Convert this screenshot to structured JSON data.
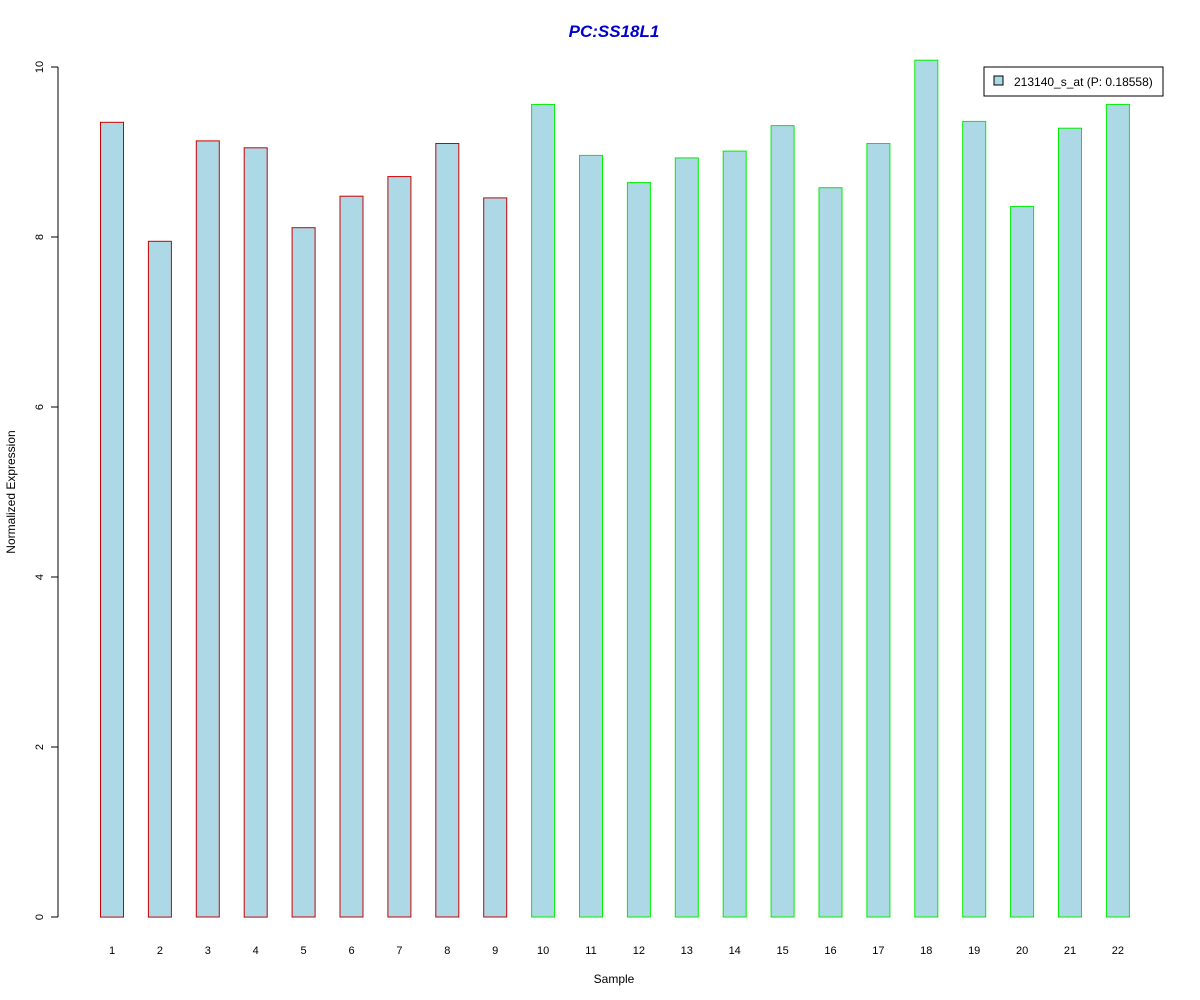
{
  "chart_data": {
    "type": "bar",
    "title": "PC:SS18L1",
    "xlabel": "Sample",
    "ylabel": "Normalized Expression",
    "ylim": [
      0,
      10
    ],
    "yticks": [
      0,
      2,
      4,
      6,
      8,
      10
    ],
    "categories": [
      "1",
      "2",
      "3",
      "4",
      "5",
      "6",
      "7",
      "8",
      "9",
      "10",
      "11",
      "12",
      "13",
      "14",
      "15",
      "16",
      "17",
      "18",
      "19",
      "20",
      "21",
      "22"
    ],
    "series": [
      {
        "name": "213140_s_at (P: 0.18558)",
        "values": [
          9.35,
          7.95,
          9.13,
          9.05,
          8.11,
          8.48,
          8.71,
          9.1,
          8.46,
          9.56,
          8.96,
          8.64,
          8.93,
          9.01,
          9.31,
          8.58,
          9.1,
          10.08,
          9.36,
          8.36,
          9.28,
          9.56
        ]
      }
    ],
    "groups": [
      1,
      1,
      1,
      1,
      1,
      1,
      1,
      1,
      1,
      2,
      2,
      2,
      2,
      2,
      2,
      2,
      2,
      2,
      2,
      2,
      2,
      2
    ],
    "colors": {
      "fill": "#add8e6",
      "group1_border": "#cc0000",
      "group2_border": "#00ee00",
      "title": "#0000cc",
      "axis": "#000000"
    },
    "legend": {
      "position": "top-right",
      "label": "213140_s_at (P: 0.18558)"
    },
    "grid": false
  }
}
